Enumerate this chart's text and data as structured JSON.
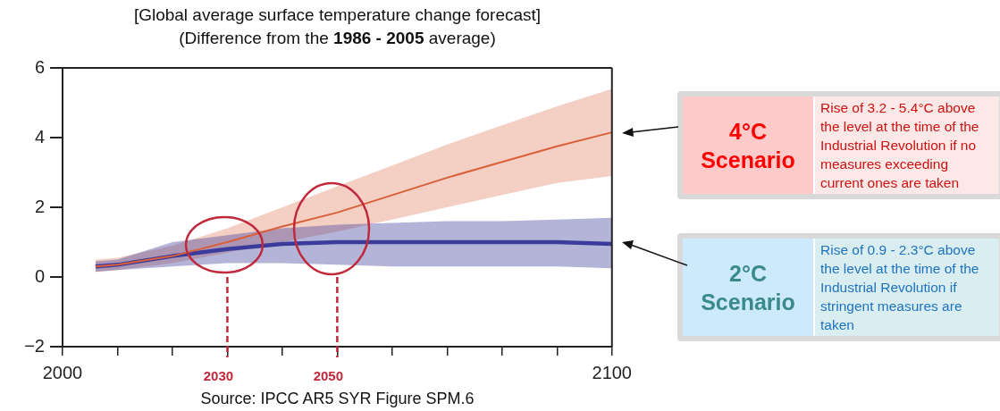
{
  "chart_data": {
    "type": "line",
    "title": "[Global average surface temperature change forecast]",
    "subtitle": "(Difference from the 1986 - 2005 average)",
    "x": [
      2006,
      2010,
      2020,
      2030,
      2040,
      2050,
      2060,
      2070,
      2080,
      2090,
      2100
    ],
    "series": [
      {
        "color": "#d9603b",
        "values": [
          0.3,
          0.35,
          0.6,
          1.0,
          1.45,
          1.85,
          2.35,
          2.85,
          3.3,
          3.75,
          4.15
        ],
        "lower": [
          0.15,
          0.2,
          0.4,
          0.7,
          1.0,
          1.3,
          1.65,
          2.0,
          2.35,
          2.7,
          2.9
        ],
        "upper": [
          0.5,
          0.55,
          0.9,
          1.4,
          2.0,
          2.6,
          3.2,
          3.8,
          4.35,
          4.9,
          5.4
        ]
      },
      {
        "color": "#3b3b9c",
        "values": [
          0.3,
          0.35,
          0.6,
          0.8,
          0.95,
          1.0,
          1.0,
          1.0,
          1.0,
          1.0,
          0.95
        ],
        "lower": [
          0.15,
          0.2,
          0.3,
          0.4,
          0.4,
          0.35,
          0.3,
          0.3,
          0.3,
          0.3,
          0.25
        ],
        "upper": [
          0.45,
          0.5,
          1.0,
          1.2,
          1.4,
          1.5,
          1.55,
          1.6,
          1.6,
          1.65,
          1.7
        ]
      }
    ],
    "xlim": [
      2000,
      2100
    ],
    "xticks": [
      2000,
      {
        "value": 2010,
        "label": null
      },
      {
        "value": 2020,
        "label": null
      },
      {
        "value": 2030,
        "label": null
      },
      {
        "value": 2040,
        "label": null
      },
      {
        "value": 2050,
        "label": null
      },
      {
        "value": 2060,
        "label": null
      },
      {
        "value": 2070,
        "label": null
      },
      {
        "value": 2080,
        "label": null
      },
      {
        "value": 2090,
        "label": null
      },
      2100
    ],
    "ylim": [
      -2,
      6
    ],
    "yticks": [
      -2,
      0,
      2,
      4,
      6
    ],
    "ref_lines": [
      {
        "axis": "x",
        "value": 2030,
        "label": "2030",
        "color": "#c0283c",
        "line_style": "dashed"
      },
      {
        "axis": "x",
        "value": 2050,
        "label": "2050",
        "color": "#c0283c",
        "line_style": "dashed"
      }
    ],
    "annotations": [
      "Source: IPCC AR5 SYR Figure SPM.6",
      "4°C Scenario",
      "Rise of 3.2 - 5.4°C above the level at the time of the Industrial Revolution if no measures exceeding current ones are taken",
      "2°C Scenario",
      "Rise of 0.9 - 2.3°C above the level at the time of the Industrial Revolution if stringent measures are taken"
    ],
    "grid": false,
    "legend": false
  }
}
